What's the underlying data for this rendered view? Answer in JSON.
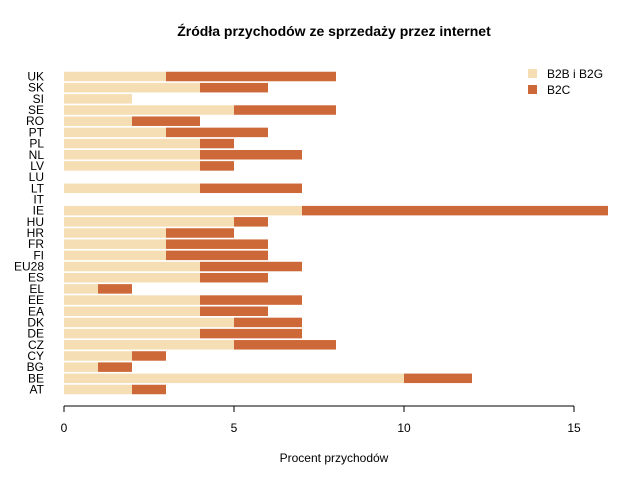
{
  "chart_data": {
    "type": "bar",
    "orientation": "horizontal",
    "stacked": true,
    "title": "Źródła przychodów ze sprzedaży przez internet",
    "xlabel": "Procent przychodów",
    "ylabel": "",
    "xlim": [
      0,
      16
    ],
    "x_ticks": [
      0,
      5,
      10,
      15
    ],
    "grid": false,
    "legend_position": "top-right",
    "categories": [
      "AT",
      "BE",
      "BG",
      "CY",
      "CZ",
      "DE",
      "DK",
      "EA",
      "EE",
      "EL",
      "ES",
      "EU28",
      "FI",
      "FR",
      "HR",
      "HU",
      "IE",
      "IT",
      "LT",
      "LU",
      "LV",
      "NL",
      "PL",
      "PT",
      "RO",
      "SE",
      "SI",
      "SK",
      "UK"
    ],
    "series": [
      {
        "name": "B2B i B2G",
        "color": "#f5deb3",
        "values": [
          2,
          10,
          1,
          2,
          5,
          4,
          5,
          4,
          4,
          1,
          4,
          4,
          3,
          3,
          3,
          5,
          7,
          0,
          4,
          0,
          4,
          4,
          4,
          3,
          2,
          5,
          2,
          4,
          3
        ]
      },
      {
        "name": "B2C",
        "color": "#cd6839",
        "values": [
          1,
          2,
          1,
          1,
          3,
          3,
          2,
          2,
          3,
          1,
          2,
          3,
          3,
          3,
          2,
          1,
          9,
          0,
          3,
          0,
          1,
          3,
          1,
          3,
          2,
          3,
          0,
          2,
          5
        ]
      }
    ]
  }
}
